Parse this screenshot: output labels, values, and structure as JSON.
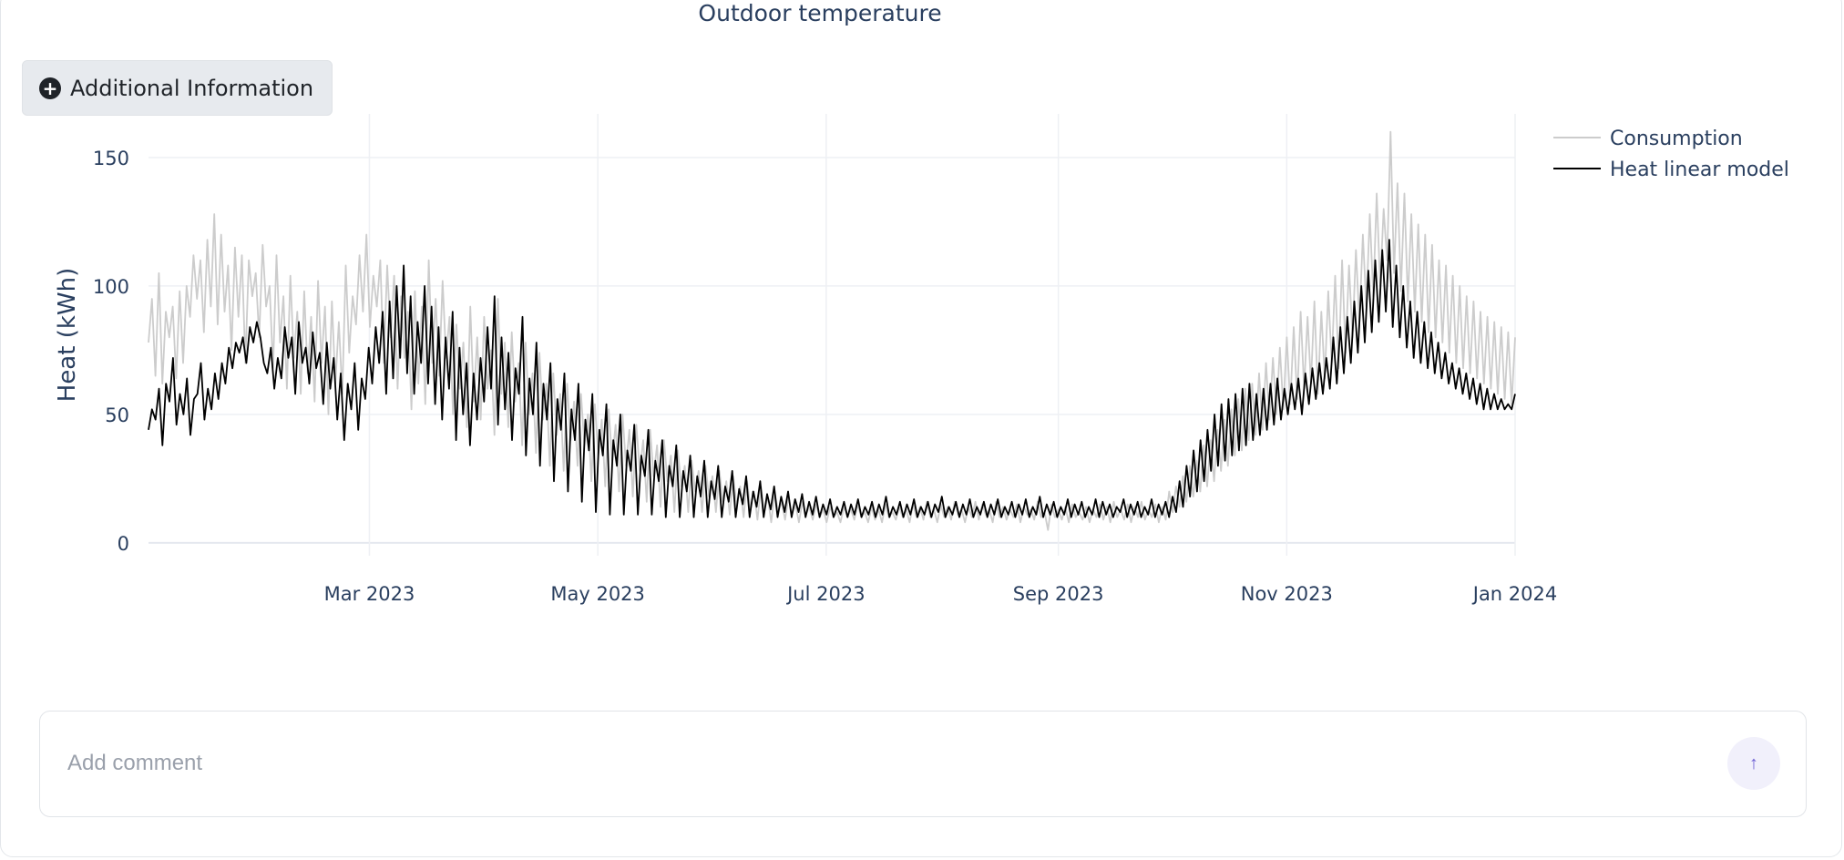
{
  "page": {
    "chart_caption": "Outdoor temperature"
  },
  "info_button": {
    "label": "Additional Information",
    "icon": "plus-circle-icon"
  },
  "comment": {
    "placeholder": "Add comment",
    "send_icon": "arrow-up-icon"
  },
  "chart_data": {
    "type": "line",
    "title": "",
    "xlabel": "",
    "ylabel": "Heat (kWh)",
    "x_range": [
      "2023-01-01",
      "2024-01-01"
    ],
    "ylim": [
      -5,
      167
    ],
    "y_ticks": [
      0,
      50,
      100,
      150
    ],
    "x_ticks": [
      {
        "date": "2023-03-01",
        "label": "Mar 2023"
      },
      {
        "date": "2023-05-01",
        "label": "May 2023"
      },
      {
        "date": "2023-07-01",
        "label": "Jul 2023"
      },
      {
        "date": "2023-09-01",
        "label": "Sep 2023"
      },
      {
        "date": "2023-11-01",
        "label": "Nov 2023"
      },
      {
        "date": "2024-01-01",
        "label": "Jan 2024"
      }
    ],
    "grid": true,
    "legend_position": "top-right",
    "series": [
      {
        "name": "Consumption",
        "color": "#cccccc",
        "daily_values": [
          78,
          95,
          65,
          105,
          62,
          90,
          80,
          92,
          64,
          98,
          70,
          100,
          88,
          112,
          95,
          110,
          82,
          118,
          92,
          128,
          85,
          120,
          90,
          108,
          75,
          115,
          88,
          112,
          70,
          110,
          96,
          105,
          80,
          116,
          92,
          100,
          68,
          112,
          78,
          96,
          60,
          104,
          72,
          90,
          58,
          98,
          66,
          88,
          55,
          102,
          70,
          92,
          50,
          94,
          62,
          86,
          58,
          108,
          74,
          96,
          85,
          112,
          90,
          120,
          84,
          104,
          92,
          110,
          70,
          108,
          80,
          104,
          60,
          96,
          72,
          90,
          52,
          98,
          62,
          92,
          54,
          110,
          70,
          95,
          65,
          102,
          72,
          88,
          50,
          85,
          60,
          78,
          45,
          92,
          55,
          80,
          48,
          88,
          60,
          75,
          42,
          95,
          58,
          78,
          45,
          82,
          55,
          70,
          38,
          78,
          50,
          66,
          35,
          74,
          48,
          62,
          30,
          66,
          42,
          58,
          28,
          62,
          40,
          55,
          30,
          58,
          38,
          50,
          24,
          54,
          34,
          48,
          22,
          52,
          32,
          46,
          20,
          50,
          30,
          44,
          18,
          46,
          28,
          40,
          16,
          44,
          26,
          38,
          14,
          40,
          24,
          34,
          12,
          36,
          22,
          30,
          12,
          32,
          20,
          28,
          12,
          30,
          18,
          26,
          12,
          28,
          16,
          24,
          11,
          26,
          14,
          22,
          10,
          24,
          13,
          20,
          9,
          22,
          12,
          18,
          8,
          20,
          12,
          16,
          9,
          18,
          11,
          15,
          8,
          16,
          11,
          14,
          9,
          15,
          10,
          13,
          8,
          14,
          10,
          12,
          8,
          14,
          10,
          13,
          9,
          15,
          10,
          12,
          8,
          14,
          9,
          13,
          8,
          15,
          10,
          12,
          9,
          14,
          10,
          13,
          8,
          15,
          10,
          14,
          9,
          16,
          10,
          13,
          8,
          15,
          10,
          14,
          9,
          16,
          11,
          13,
          8,
          14,
          10,
          16,
          9,
          15,
          11,
          13,
          8,
          16,
          10,
          14,
          9,
          13,
          10,
          15,
          8,
          14,
          11,
          13,
          9,
          16,
          10,
          12,
          5,
          15,
          10,
          13,
          9,
          14,
          8,
          15,
          10,
          12,
          9,
          14,
          8,
          13,
          10,
          15,
          9,
          14,
          8,
          16,
          10,
          13,
          9,
          15,
          8,
          14,
          10,
          16,
          9,
          13,
          10,
          15,
          8,
          14,
          9,
          20,
          12,
          22,
          14,
          26,
          16,
          30,
          18,
          32,
          20,
          38,
          22,
          40,
          24,
          44,
          28,
          48,
          30,
          52,
          34,
          56,
          36,
          60,
          40,
          62,
          42,
          66,
          44,
          70,
          48,
          72,
          50,
          76,
          52,
          80,
          54,
          84,
          56,
          90,
          60,
          88,
          62,
          94,
          58,
          90,
          64,
          98,
          70,
          104,
          68,
          110,
          74,
          108,
          80,
          114,
          86,
          120,
          92,
          128,
          96,
          136,
          100,
          130,
          110,
          160,
          105,
          140,
          98,
          136,
          94,
          128,
          90,
          124,
          86,
          120,
          82,
          116,
          80,
          110,
          78,
          108,
          74,
          104,
          70,
          100,
          68,
          96,
          66,
          94,
          64,
          90,
          62,
          88,
          60,
          86,
          58,
          84,
          56,
          82,
          54,
          80
        ]
      },
      {
        "name": "Heat linear model",
        "color": "#000000",
        "daily_values": [
          44,
          52,
          48,
          60,
          38,
          62,
          55,
          72,
          46,
          58,
          50,
          64,
          42,
          56,
          58,
          70,
          48,
          60,
          52,
          66,
          56,
          70,
          62,
          76,
          68,
          78,
          74,
          80,
          70,
          84,
          78,
          86,
          80,
          70,
          66,
          76,
          60,
          72,
          64,
          84,
          72,
          80,
          58,
          86,
          70,
          76,
          62,
          82,
          68,
          74,
          54,
          78,
          60,
          72,
          48,
          66,
          40,
          62,
          52,
          70,
          44,
          64,
          56,
          76,
          62,
          84,
          70,
          90,
          58,
          94,
          64,
          100,
          72,
          108,
          66,
          96,
          58,
          86,
          70,
          100,
          62,
          92,
          54,
          84,
          48,
          80,
          60,
          90,
          40,
          76,
          50,
          70,
          38,
          66,
          48,
          72,
          55,
          84,
          60,
          96,
          46,
          80,
          52,
          74,
          40,
          68,
          58,
          88,
          34,
          64,
          50,
          78,
          30,
          62,
          48,
          70,
          24,
          56,
          44,
          66,
          20,
          52,
          40,
          62,
          16,
          48,
          36,
          58,
          12,
          44,
          34,
          54,
          11,
          40,
          30,
          50,
          11,
          36,
          28,
          46,
          11,
          34,
          26,
          44,
          11,
          32,
          24,
          40,
          10,
          30,
          22,
          38,
          10,
          28,
          20,
          34,
          10,
          26,
          18,
          32,
          10,
          24,
          17,
          30,
          10,
          22,
          16,
          28,
          10,
          21,
          15,
          26,
          10,
          20,
          14,
          24,
          10,
          19,
          13,
          22,
          10,
          18,
          12,
          20,
          10,
          17,
          12,
          19,
          10,
          16,
          11,
          18,
          10,
          15,
          11,
          17,
          10,
          14,
          11,
          16,
          10,
          15,
          11,
          17,
          10,
          14,
          11,
          16,
          10,
          15,
          11,
          18,
          10,
          14,
          11,
          16,
          10,
          15,
          11,
          17,
          10,
          14,
          11,
          16,
          10,
          15,
          12,
          18,
          10,
          14,
          11,
          16,
          10,
          15,
          11,
          17,
          10,
          14,
          11,
          16,
          10,
          15,
          11,
          17,
          10,
          14,
          11,
          16,
          10,
          15,
          11,
          17,
          10,
          14,
          11,
          18,
          10,
          15,
          11,
          16,
          10,
          14,
          11,
          17,
          10,
          15,
          11,
          16,
          10,
          14,
          11,
          17,
          10,
          16,
          11,
          15,
          10,
          14,
          12,
          17,
          10,
          15,
          11,
          16,
          10,
          14,
          11,
          17,
          10,
          15,
          11,
          16,
          10,
          18,
          12,
          24,
          14,
          30,
          18,
          36,
          20,
          40,
          24,
          44,
          28,
          50,
          30,
          54,
          32,
          56,
          34,
          58,
          36,
          60,
          38,
          62,
          40,
          58,
          42,
          60,
          44,
          62,
          46,
          64,
          48,
          60,
          50,
          62,
          52,
          64,
          50,
          66,
          54,
          68,
          56,
          70,
          58,
          72,
          60,
          80,
          62,
          84,
          66,
          88,
          70,
          94,
          74,
          100,
          78,
          106,
          82,
          110,
          86,
          114,
          90,
          118,
          84,
          108,
          80,
          100,
          76,
          94,
          72,
          90,
          70,
          86,
          68,
          82,
          66,
          78,
          64,
          74,
          62,
          70,
          60,
          68,
          58,
          66,
          56,
          64,
          54,
          62,
          52,
          60,
          52,
          58,
          52,
          56,
          52,
          54,
          52,
          58
        ]
      }
    ]
  }
}
